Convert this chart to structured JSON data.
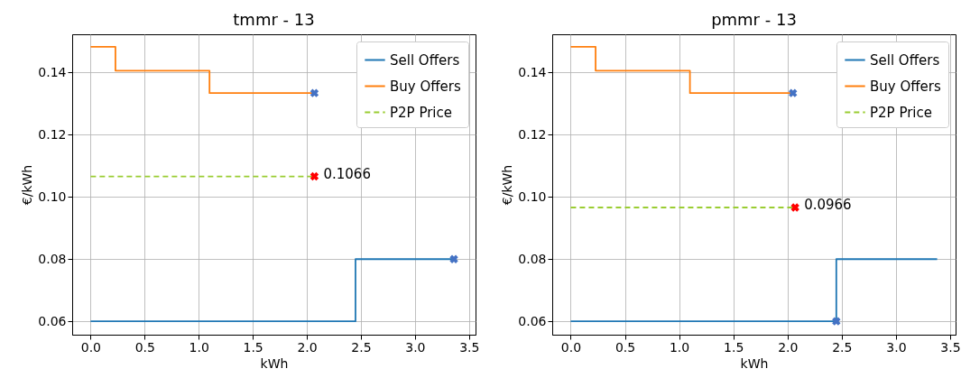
{
  "chart_data": [
    {
      "type": "step",
      "title": "tmmr - 13",
      "xlabel": "kWh",
      "ylabel": "€/kWh",
      "xlim": [
        -0.17,
        3.56
      ],
      "xticks": [
        {
          "value": 0,
          "label": "0.0"
        },
        0.5,
        {
          "value": 1,
          "label": "1.0"
        },
        1.5,
        {
          "value": 2,
          "label": "2.0"
        },
        2.5,
        {
          "value": 3,
          "label": "3.0"
        },
        3.5
      ],
      "ylim": [
        0.0557,
        0.1523
      ],
      "yticks": [
        0.06,
        0.08,
        {
          "value": 0.1,
          "label": "0.10"
        },
        0.12,
        0.14
      ],
      "grid": true,
      "legend": "top right",
      "series": [
        {
          "name": "Sell Offers",
          "color": "#1f77b4",
          "x": [
            0,
            2.45,
            3.36
          ],
          "values": [
            0.06,
            0.08,
            0.08
          ]
        },
        {
          "name": "Buy Offers",
          "color": "#ff7f0e",
          "x": [
            0,
            0.23,
            1.1,
            2.07
          ],
          "values": [
            0.1483,
            0.1406,
            0.1334,
            0.1334
          ]
        },
        {
          "name": "P2P Price",
          "type": "line",
          "line_style": "dashed",
          "color": "#9acd32",
          "x": [
            0,
            2.07
          ],
          "values": [
            0.1066,
            0.1066
          ]
        },
        {
          "type": "scatter",
          "marker": "cross",
          "color": "#4472c4",
          "x": [
            2.07,
            3.36
          ],
          "values": [
            0.1334,
            0.08
          ]
        },
        {
          "type": "scatter",
          "marker": "cross",
          "color": "#ff0000",
          "x": [
            2.07
          ],
          "values": [
            0.1066
          ]
        }
      ],
      "annotations": [
        {
          "text": "0.1066",
          "x": 2.07,
          "y": 0.1066
        }
      ]
    },
    {
      "type": "step",
      "title": "pmmr - 13",
      "xlabel": "kWh",
      "ylabel": "€/kWh",
      "xlim": [
        -0.17,
        3.55
      ],
      "xticks": [
        {
          "value": 0,
          "label": "0.0"
        },
        0.5,
        {
          "value": 1,
          "label": "1.0"
        },
        1.5,
        {
          "value": 2,
          "label": "2.0"
        },
        2.5,
        {
          "value": 3,
          "label": "3.0"
        },
        3.5
      ],
      "ylim": [
        0.0557,
        0.1523
      ],
      "yticks": [
        0.06,
        0.08,
        {
          "value": 0.1,
          "label": "0.10"
        },
        0.12,
        0.14
      ],
      "grid": true,
      "legend": "top right",
      "series": [
        {
          "name": "Sell Offers",
          "color": "#1f77b4",
          "x": [
            0,
            2.45,
            3.38
          ],
          "values": [
            0.06,
            0.08,
            0.08
          ]
        },
        {
          "name": "Buy Offers",
          "color": "#ff7f0e",
          "x": [
            0,
            0.23,
            1.1,
            2.05
          ],
          "values": [
            0.1483,
            0.1406,
            0.1334,
            0.1334
          ]
        },
        {
          "name": "P2P Price",
          "type": "line",
          "line_style": "dashed",
          "color": "#9acd32",
          "x": [
            0,
            2.07
          ],
          "values": [
            0.0966,
            0.0966
          ]
        },
        {
          "type": "scatter",
          "marker": "cross",
          "color": "#4472c4",
          "x": [
            2.05,
            2.45
          ],
          "values": [
            0.1334,
            0.06
          ]
        },
        {
          "type": "scatter",
          "marker": "cross",
          "color": "#ff0000",
          "x": [
            2.07
          ],
          "values": [
            0.0966
          ]
        }
      ],
      "annotations": [
        {
          "text": "0.0966",
          "x": 2.07,
          "y": 0.0966
        }
      ]
    }
  ]
}
